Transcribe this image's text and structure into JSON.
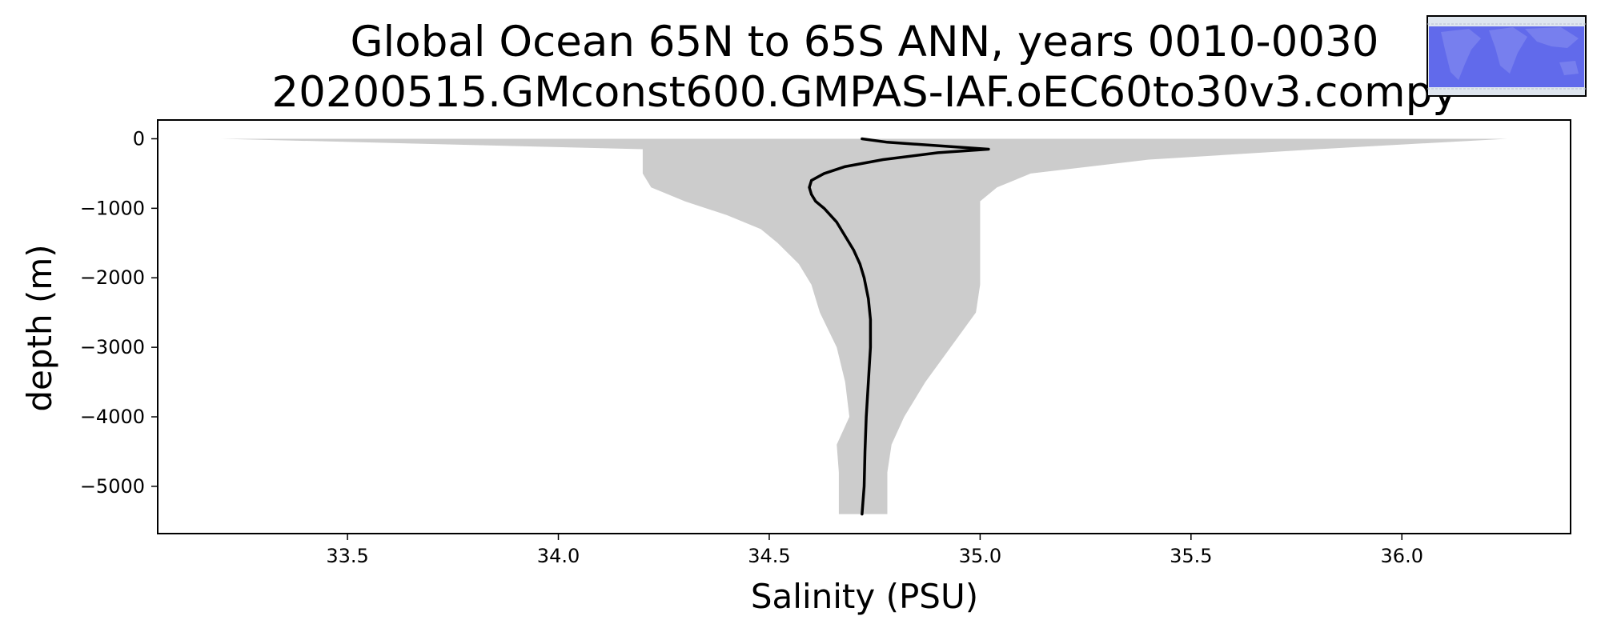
{
  "chart_data": {
    "type": "area",
    "title_line1": "Global Ocean 65N to 65S ANN, years 0010-0030",
    "title_line2": "20200515.GMconst600.GMPAS-IAF.oEC60to30v3.compy",
    "xlabel": "Salinity (PSU)",
    "ylabel": "depth (m)",
    "xlim": [
      33.05,
      36.4
    ],
    "ylim": [
      -5680,
      270
    ],
    "xticks": [
      33.5,
      34.0,
      34.5,
      35.0,
      35.5,
      36.0
    ],
    "xtick_labels": [
      "33.5",
      "34.0",
      "34.5",
      "35.0",
      "35.5",
      "36.0"
    ],
    "yticks": [
      0,
      -1000,
      -2000,
      -3000,
      -4000,
      -5000
    ],
    "ytick_labels": [
      "0",
      "−1000",
      "−2000",
      "−3000",
      "−4000",
      "−5000"
    ],
    "grid": false,
    "inset": "global map (top-right)",
    "series": [
      {
        "kind": "range",
        "color": "#cccccc",
        "depth": [
          0,
          -150,
          -300,
          -500,
          -700,
          -900,
          -1100,
          -1300,
          -1500,
          -1800,
          -2100,
          -2500,
          -3000,
          -3500,
          -4000,
          -4400,
          -4800,
          -5200,
          -5400
        ],
        "min": [
          33.2,
          34.2,
          34.2,
          34.2,
          34.22,
          34.3,
          34.4,
          34.48,
          34.52,
          34.57,
          34.6,
          34.62,
          34.66,
          34.68,
          34.69,
          34.66,
          34.665,
          34.665,
          34.665
        ],
        "max": [
          36.25,
          35.8,
          35.4,
          35.12,
          35.04,
          35.0,
          35.0,
          35.0,
          35.0,
          35.0,
          35.0,
          34.99,
          34.93,
          34.87,
          34.82,
          34.79,
          34.78,
          34.78,
          34.78
        ]
      },
      {
        "kind": "mean",
        "color": "#000000",
        "depth": [
          0,
          -50,
          -100,
          -150,
          -200,
          -300,
          -400,
          -500,
          -600,
          -700,
          -800,
          -900,
          -1000,
          -1200,
          -1400,
          -1600,
          -1800,
          -2000,
          -2300,
          -2600,
          -3000,
          -3500,
          -4000,
          -4500,
          -5000,
          -5400
        ],
        "values": [
          34.72,
          34.78,
          34.9,
          35.02,
          34.9,
          34.77,
          34.68,
          34.63,
          34.6,
          34.595,
          34.6,
          34.61,
          34.63,
          34.66,
          34.68,
          34.7,
          34.715,
          34.725,
          34.735,
          34.74,
          34.74,
          34.735,
          34.73,
          34.727,
          34.725,
          34.72
        ]
      }
    ]
  }
}
